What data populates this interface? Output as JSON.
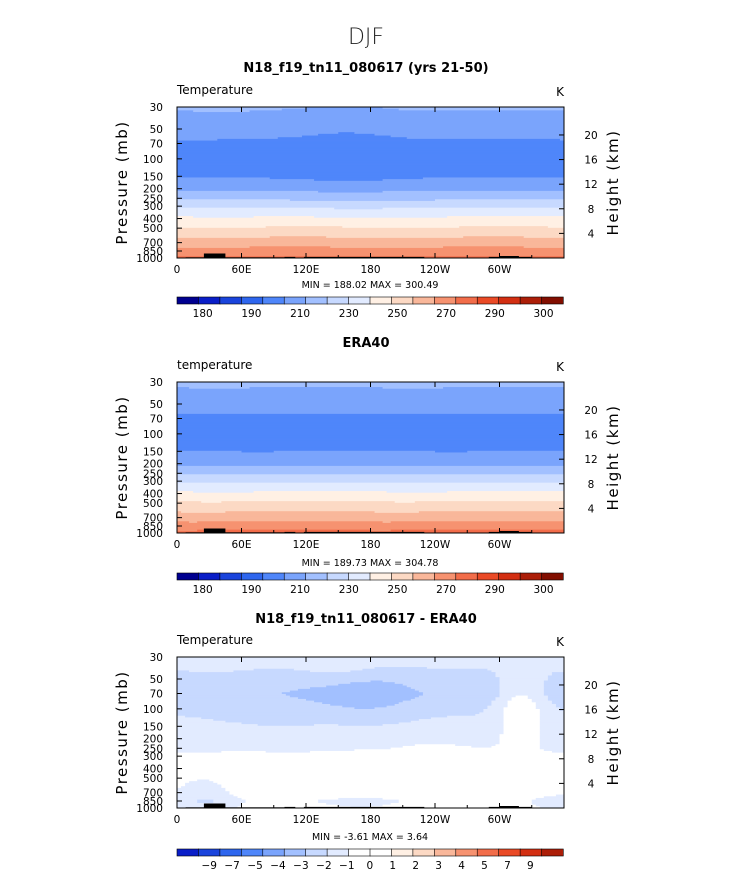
{
  "figure_title": "DJF",
  "colors": {
    "blues": [
      "#000090",
      "#0a1ec8",
      "#1a44dc",
      "#2e66ee",
      "#4f86fa",
      "#7aa4fc",
      "#a2c0ff",
      "#c7d9ff",
      "#e2ebff"
    ],
    "reds": [
      "#fff0e4",
      "#fcd9c4",
      "#f9b79a",
      "#f69270",
      "#f26d4a",
      "#ea4a26",
      "#d32f12",
      "#ac1e08",
      "#820e00"
    ],
    "white": "#ffffff",
    "topography": "#000000"
  },
  "panels": [
    {
      "title": "N18_f19_tn11_080617 (yrs 21-50)",
      "left_label": "Temperature",
      "right_label": "K",
      "minmax": "MIN = 188.02 MAX = 300.49"
    },
    {
      "title": "ERA40",
      "left_label": "temperature",
      "right_label": "K",
      "minmax": "MIN = 189.73 MAX = 304.78"
    },
    {
      "title": "N18_f19_tn11_080617 - ERA40",
      "left_label": "Temperature",
      "right_label": "K",
      "minmax": "MIN =   -3.61  MAX =   3.64"
    }
  ],
  "chart_data": [
    {
      "type": "contour",
      "title": "N18_f19_tn11_080617 (yrs 21-50)",
      "field": "Temperature",
      "units": "K",
      "xlabel": "",
      "ylabel": "Pressure (mb)",
      "y2label": "Height (km)",
      "x_ticks": [
        "0",
        "60E",
        "120E",
        "180",
        "120W",
        "60W"
      ],
      "x_tick_lon": [
        0,
        60,
        120,
        180,
        240,
        300
      ],
      "xlim": [
        0,
        360
      ],
      "y_ticks": [
        30,
        50,
        70,
        100,
        150,
        200,
        250,
        300,
        400,
        500,
        700,
        850,
        1000
      ],
      "ylim": [
        1000,
        30
      ],
      "y2_ticks": [
        20,
        16,
        12,
        8,
        4
      ],
      "min": 188.02,
      "max": 300.49,
      "colorbar_labels": [
        "180",
        "190",
        "210",
        "230",
        "250",
        "270",
        "290",
        "300"
      ],
      "colorbar_levels": [
        180,
        185,
        190,
        200,
        210,
        220,
        230,
        240,
        250,
        260,
        270,
        280,
        290,
        295,
        300
      ],
      "profile": [
        {
          "p": 30,
          "v": 221
        },
        {
          "p": 50,
          "v": 215
        },
        {
          "p": 70,
          "v": 208
        },
        {
          "p": 100,
          "v": 204
        },
        {
          "p": 150,
          "v": 209
        },
        {
          "p": 200,
          "v": 218
        },
        {
          "p": 250,
          "v": 228
        },
        {
          "p": 300,
          "v": 238
        },
        {
          "p": 400,
          "v": 252
        },
        {
          "p": 500,
          "v": 261
        },
        {
          "p": 700,
          "v": 275
        },
        {
          "p": 850,
          "v": 284
        },
        {
          "p": 1000,
          "v": 292
        }
      ],
      "features": [
        {
          "lon": 160,
          "p": 92,
          "dlon": 45,
          "dp": 0.13,
          "amp": -4
        }
      ]
    },
    {
      "type": "contour",
      "title": "ERA40",
      "field": "temperature",
      "units": "K",
      "xlabel": "",
      "ylabel": "Pressure (mb)",
      "y2label": "Height (km)",
      "x_ticks": [
        "0",
        "60E",
        "120E",
        "180",
        "120W",
        "60W"
      ],
      "x_tick_lon": [
        0,
        60,
        120,
        180,
        240,
        300
      ],
      "xlim": [
        0,
        360
      ],
      "y_ticks": [
        30,
        50,
        70,
        100,
        150,
        200,
        250,
        300,
        400,
        500,
        700,
        850,
        1000
      ],
      "ylim": [
        1000,
        30
      ],
      "y2_ticks": [
        20,
        16,
        12,
        8,
        4
      ],
      "min": 189.73,
      "max": 304.78,
      "colorbar_labels": [
        "180",
        "190",
        "210",
        "230",
        "250",
        "270",
        "290",
        "300"
      ],
      "colorbar_levels": [
        180,
        185,
        190,
        200,
        210,
        220,
        230,
        240,
        250,
        260,
        270,
        280,
        290,
        295,
        300
      ],
      "profile": [
        {
          "p": 30,
          "v": 222
        },
        {
          "p": 50,
          "v": 214
        },
        {
          "p": 70,
          "v": 208
        },
        {
          "p": 100,
          "v": 205
        },
        {
          "p": 150,
          "v": 210
        },
        {
          "p": 200,
          "v": 218
        },
        {
          "p": 250,
          "v": 228
        },
        {
          "p": 300,
          "v": 238
        },
        {
          "p": 400,
          "v": 252
        },
        {
          "p": 500,
          "v": 262
        },
        {
          "p": 700,
          "v": 276
        },
        {
          "p": 850,
          "v": 285
        },
        {
          "p": 1000,
          "v": 294
        }
      ],
      "features": []
    },
    {
      "type": "contour",
      "title": "N18_f19_tn11_080617 - ERA40",
      "field": "Temperature",
      "units": "K",
      "xlabel": "",
      "ylabel": "Pressure (mb)",
      "y2label": "Height (km)",
      "x_ticks": [
        "0",
        "60E",
        "120E",
        "180",
        "120W",
        "60W"
      ],
      "x_tick_lon": [
        0,
        60,
        120,
        180,
        240,
        300
      ],
      "xlim": [
        0,
        360
      ],
      "y_ticks": [
        30,
        50,
        70,
        100,
        150,
        200,
        250,
        300,
        400,
        500,
        700,
        850,
        1000
      ],
      "ylim": [
        1000,
        30
      ],
      "y2_ticks": [
        20,
        16,
        12,
        8,
        4
      ],
      "min": -3.61,
      "max": 3.64,
      "colorbar_labels": [
        "-9",
        "-7",
        "-5",
        "-4",
        "-3",
        "-2",
        "-1",
        "0",
        "1",
        "2",
        "3",
        "4",
        "5",
        "7",
        "9"
      ],
      "colorbar_levels": [
        -9,
        -7,
        -5,
        -4,
        -3,
        -2,
        -1,
        0,
        1,
        2,
        3,
        4,
        5,
        7,
        9
      ],
      "profile": [
        {
          "p": 30,
          "v": -0.6
        },
        {
          "p": 50,
          "v": -1.3
        },
        {
          "p": 70,
          "v": -1.7
        },
        {
          "p": 100,
          "v": -1.2
        },
        {
          "p": 150,
          "v": -0.9
        },
        {
          "p": 200,
          "v": -0.6
        },
        {
          "p": 250,
          "v": -0.4
        },
        {
          "p": 300,
          "v": 0.2
        },
        {
          "p": 400,
          "v": 0.4
        },
        {
          "p": 500,
          "v": 0.5
        },
        {
          "p": 700,
          "v": 0.3
        },
        {
          "p": 850,
          "v": -0.2
        },
        {
          "p": 1000,
          "v": 0.1
        }
      ],
      "features": [
        {
          "lon": 150,
          "p": 32,
          "dlon": 40,
          "dp": 0.18,
          "amp": 0.9
        },
        {
          "lon": 165,
          "p": 73,
          "dlon": 55,
          "dp": 0.08,
          "amp": -1.6
        },
        {
          "lon": 320,
          "p": 98,
          "dlon": 22,
          "dp": 0.1,
          "amp": 1.9
        },
        {
          "lon": 240,
          "p": 430,
          "dlon": 60,
          "dp": 0.14,
          "amp": 0.8
        },
        {
          "lon": 60,
          "p": 450,
          "dlon": 30,
          "dp": 0.08,
          "amp": 0.6
        },
        {
          "lon": 30,
          "p": 780,
          "dlon": 25,
          "dp": 0.06,
          "amp": -0.8
        },
        {
          "lon": 300,
          "p": 950,
          "dlon": 20,
          "dp": 0.05,
          "amp": 1.1
        }
      ]
    }
  ]
}
